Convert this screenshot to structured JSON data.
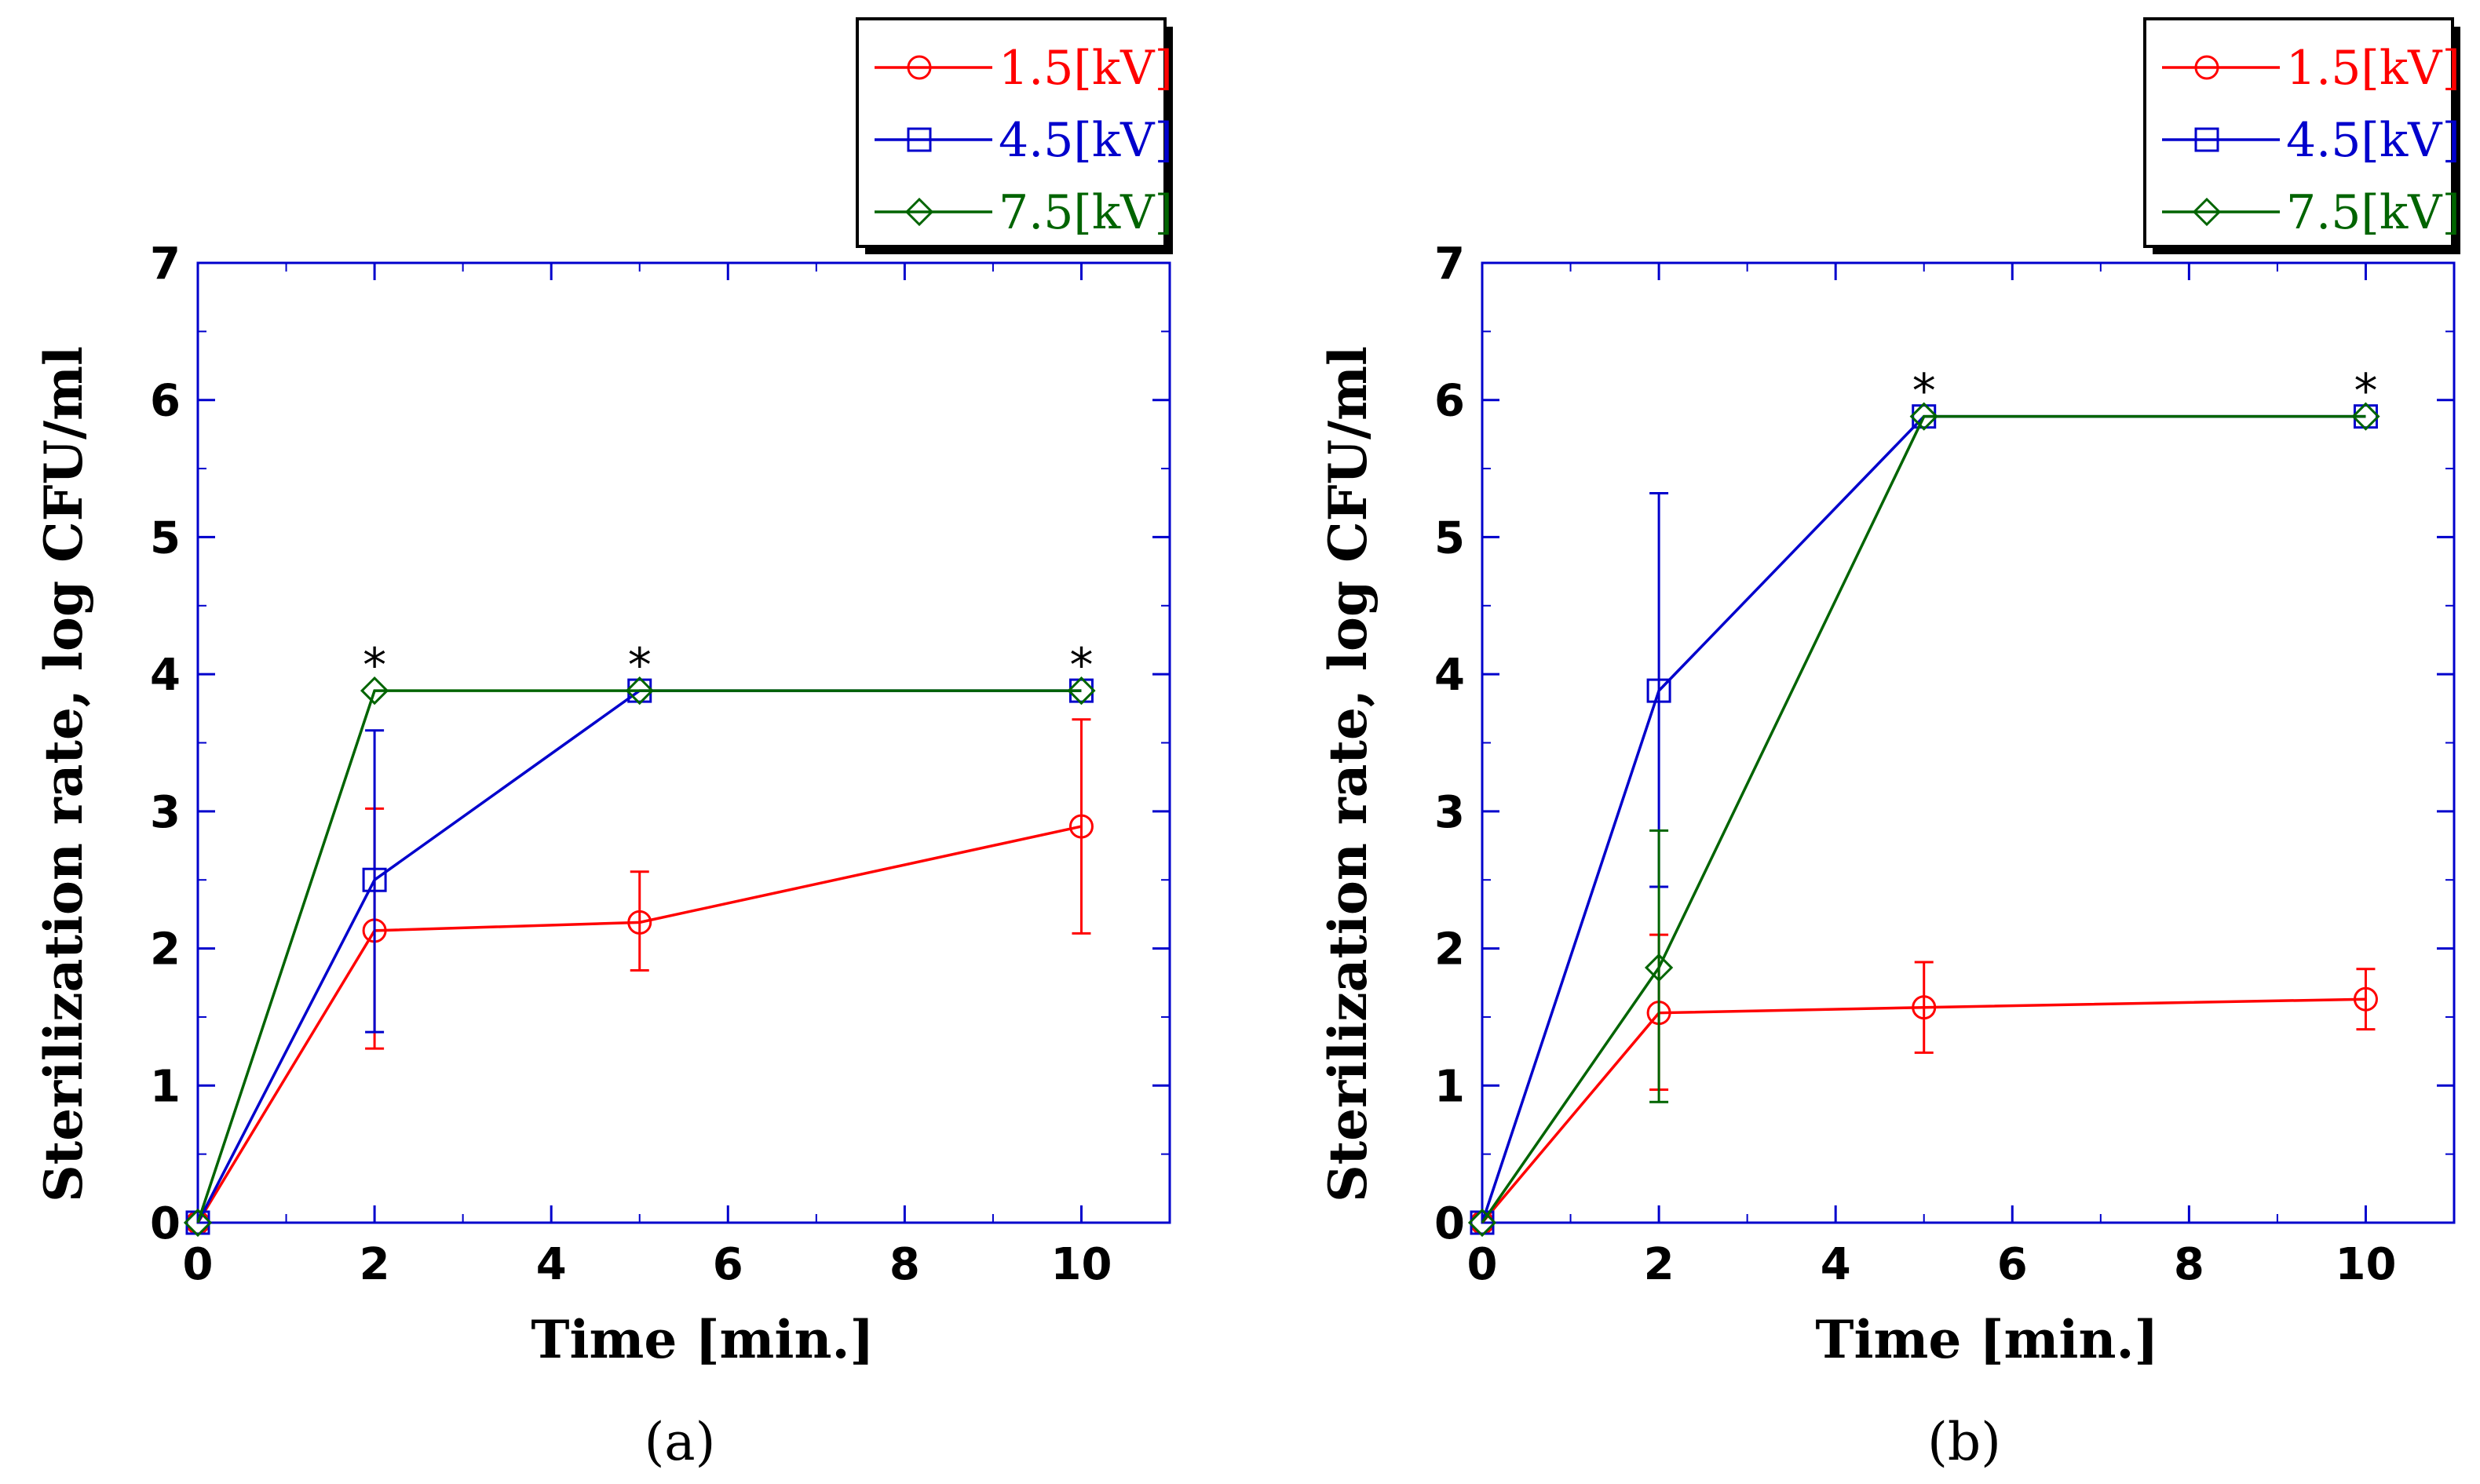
{
  "chart_data": [
    {
      "type": "line",
      "panel_label": "(a)",
      "xlabel": "Time [min.]",
      "ylabel": "Sterilization rate, log CFU/ml",
      "xlim": [
        0,
        11
      ],
      "ylim": [
        0,
        7
      ],
      "xticks": [
        0,
        2,
        4,
        6,
        8,
        10
      ],
      "yticks": [
        0,
        1,
        2,
        3,
        4,
        5,
        6,
        7
      ],
      "grid": false,
      "legend_position": "top-right",
      "series": [
        {
          "name": "1.5[kV]",
          "color": "#ff0000",
          "marker": "circle",
          "x": [
            0,
            2,
            5,
            10
          ],
          "y": [
            0,
            2.13,
            2.19,
            2.89
          ],
          "err_upper": [
            0,
            3.02,
            2.56,
            3.67
          ],
          "err_lower": [
            0,
            1.27,
            1.84,
            2.11
          ]
        },
        {
          "name": "4.5[kV]",
          "color": "#0000cc",
          "marker": "square",
          "x": [
            0,
            2,
            5,
            10
          ],
          "y": [
            0,
            2.5,
            3.88,
            3.88
          ],
          "err_upper": [
            0,
            3.59,
            3.88,
            3.88
          ],
          "err_lower": [
            0,
            1.39,
            3.88,
            3.88
          ]
        },
        {
          "name": "7.5[kV]",
          "color": "#006400",
          "marker": "diamond",
          "x": [
            0,
            2,
            5,
            10
          ],
          "y": [
            0,
            3.88,
            3.88,
            3.88
          ],
          "err_upper": [
            0,
            3.88,
            3.88,
            3.88
          ],
          "err_lower": [
            0,
            3.88,
            3.88,
            3.88
          ]
        }
      ],
      "annotations": [
        {
          "text": "*",
          "x": 2,
          "y": 3.88
        },
        {
          "text": "*",
          "x": 5,
          "y": 3.88
        },
        {
          "text": "*",
          "x": 10,
          "y": 3.88
        }
      ]
    },
    {
      "type": "line",
      "panel_label": "(b)",
      "xlabel": "Time [min.]",
      "ylabel": "Sterilization rate, log CFU/ml",
      "xlim": [
        0,
        11
      ],
      "ylim": [
        0,
        7
      ],
      "xticks": [
        0,
        2,
        4,
        6,
        8,
        10
      ],
      "yticks": [
        0,
        1,
        2,
        3,
        4,
        5,
        6,
        7
      ],
      "grid": false,
      "legend_position": "top-right",
      "series": [
        {
          "name": "1.5[kV]",
          "color": "#ff0000",
          "marker": "circle",
          "x": [
            0,
            2,
            5,
            10
          ],
          "y": [
            0,
            1.53,
            1.57,
            1.63
          ],
          "err_upper": [
            0,
            2.1,
            1.9,
            1.85
          ],
          "err_lower": [
            0,
            0.97,
            1.24,
            1.41
          ]
        },
        {
          "name": "4.5[kV]",
          "color": "#0000cc",
          "marker": "square",
          "x": [
            0,
            2,
            5,
            10
          ],
          "y": [
            0,
            3.88,
            5.88,
            5.88
          ],
          "err_upper": [
            0,
            5.32,
            5.88,
            5.88
          ],
          "err_lower": [
            0,
            2.45,
            5.88,
            5.88
          ]
        },
        {
          "name": "7.5[kV]",
          "color": "#006400",
          "marker": "diamond",
          "x": [
            0,
            2,
            5,
            10
          ],
          "y": [
            0,
            1.86,
            5.88,
            5.88
          ],
          "err_upper": [
            0,
            2.86,
            5.88,
            5.88
          ],
          "err_lower": [
            0,
            0.88,
            5.88,
            5.88
          ]
        }
      ],
      "annotations": [
        {
          "text": "*",
          "x": 5,
          "y": 5.88
        },
        {
          "text": "*",
          "x": 10,
          "y": 5.88
        }
      ]
    }
  ]
}
